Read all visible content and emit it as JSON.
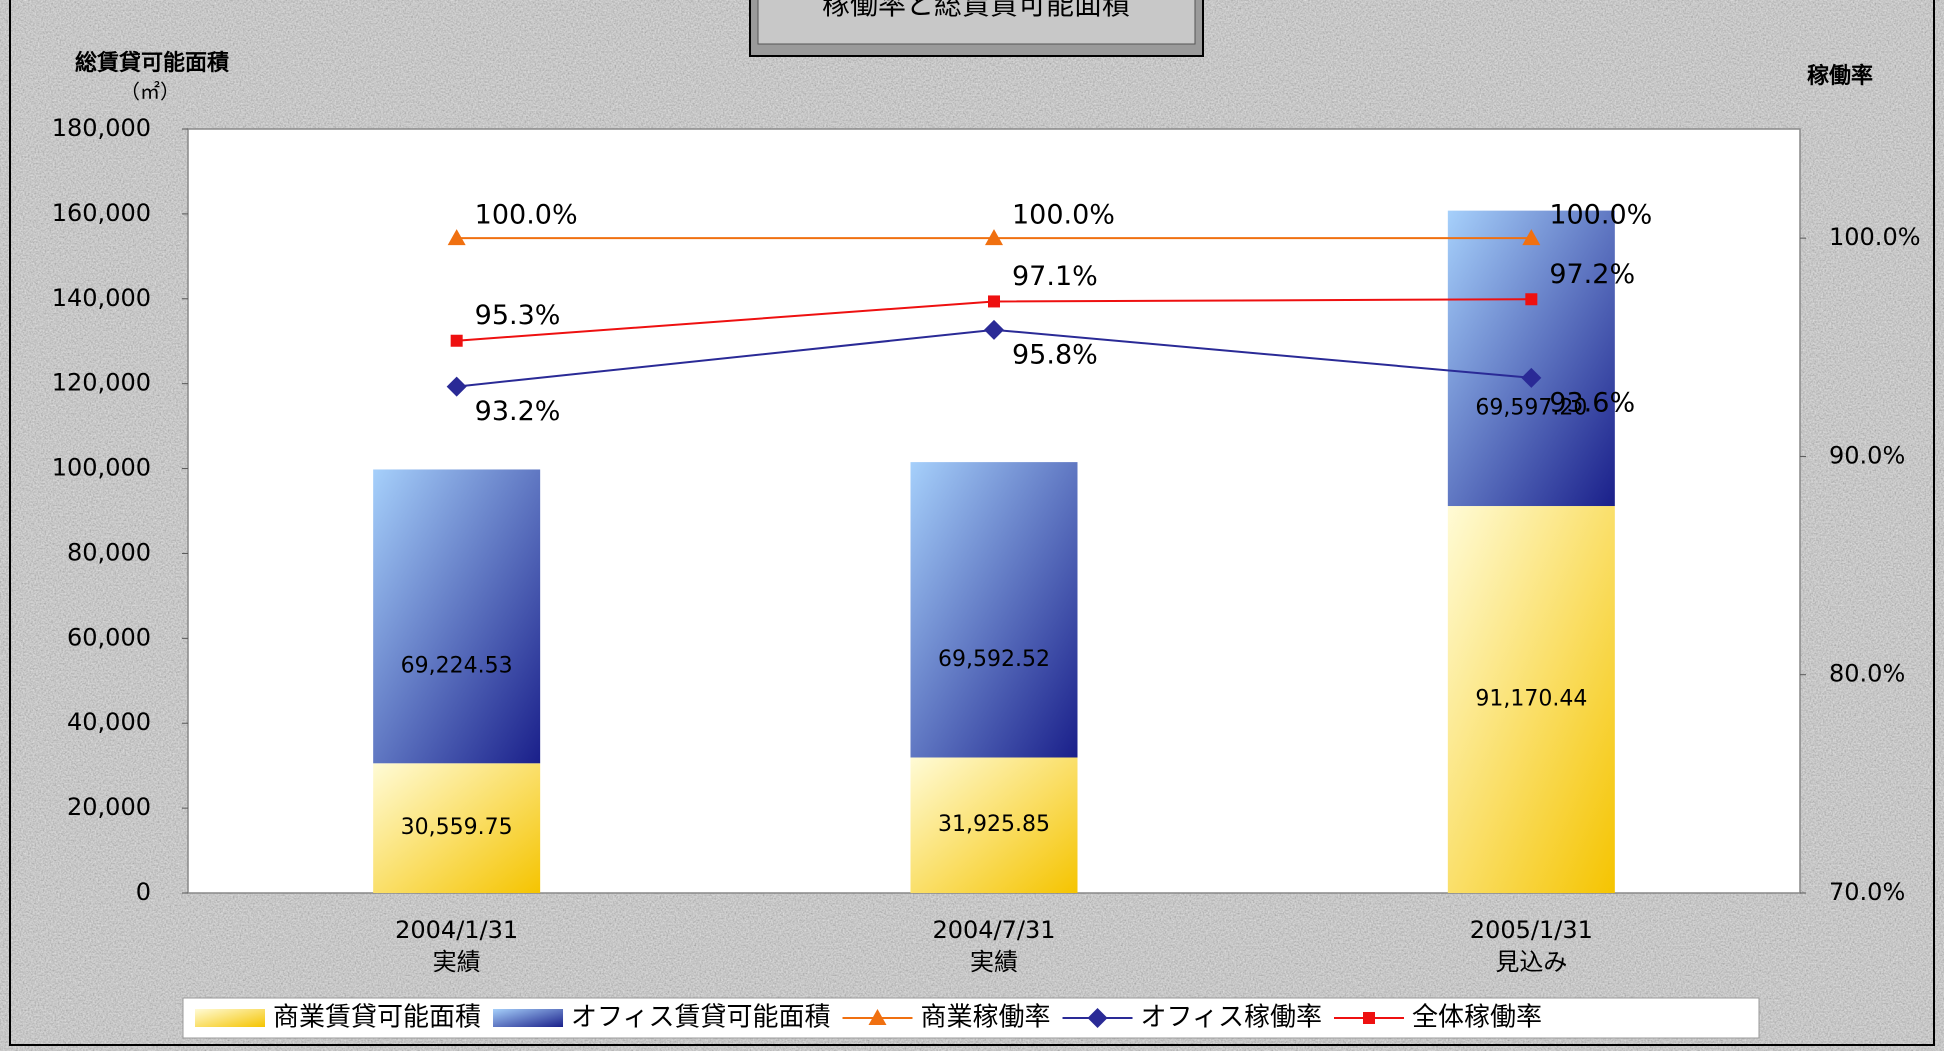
{
  "chart_data": {
    "type": "bar",
    "title": "稼働率と総賃貸可能面積",
    "y_label": "総賃貸可能面積",
    "y_unit": "（㎡）",
    "y2_label": "稼働率",
    "stacked": true,
    "categories": [
      "2004/1/31",
      "2004/7/31",
      "2005/1/31"
    ],
    "category_notes": [
      "実績",
      "実績",
      "見込み"
    ],
    "series": [
      {
        "name": "商業賃貸可能面積",
        "type": "bar",
        "color": "#f5c400",
        "values": [
          30559.75,
          31925.85,
          91170.44
        ],
        "value_labels": [
          "30,559.75",
          "31,925.85",
          "91,170.44"
        ]
      },
      {
        "name": "オフィス賃貸可能面積",
        "type": "bar",
        "color": "#1a1f8a",
        "values": [
          69224.53,
          69592.52,
          69597.2
        ],
        "value_labels": [
          "69,224.53",
          "69,592.52",
          "69,597.20"
        ]
      },
      {
        "name": "商業稼働率",
        "type": "line",
        "axis": "y2",
        "marker": "triangle",
        "color": "#f07010",
        "values": [
          100.0,
          100.0,
          100.0
        ],
        "value_labels": [
          "100.0%",
          "100.0%",
          "100.0%"
        ]
      },
      {
        "name": "オフィス稼働率",
        "type": "line",
        "axis": "y2",
        "marker": "diamond",
        "color": "#2a2a96",
        "values": [
          93.2,
          95.8,
          93.6
        ],
        "value_labels": [
          "93.2%",
          "95.8%",
          "93.6%"
        ]
      },
      {
        "name": "全体稼働率",
        "type": "line",
        "axis": "y2",
        "marker": "square",
        "color": "#ee1010",
        "values": [
          95.3,
          97.1,
          97.2
        ],
        "value_labels": [
          "95.3%",
          "97.1%",
          "97.2%"
        ]
      }
    ],
    "ylim": [
      0,
      180000
    ],
    "yticks": [
      0,
      {
        "value": 20000,
        "label": "20,000"
      },
      {
        "value": 40000,
        "label": "40,000"
      },
      {
        "value": 60000,
        "label": "60,000"
      },
      {
        "value": 80000,
        "label": "80,000"
      },
      {
        "value": 100000,
        "label": "100,000"
      },
      {
        "value": 120000,
        "label": "120,000"
      },
      {
        "value": 140000,
        "label": "140,000"
      },
      {
        "value": 160000,
        "label": "160,000"
      },
      {
        "value": 180000,
        "label": "180,000"
      }
    ],
    "y2lim": [
      70,
      105
    ],
    "y2ticks": [
      {
        "value": 70,
        "label": "70.0%"
      },
      {
        "value": 80,
        "label": "80.0%"
      },
      {
        "value": 90,
        "label": "90.0%"
      },
      {
        "value": 100,
        "label": "100.0%"
      }
    ],
    "legend": "bottom"
  }
}
